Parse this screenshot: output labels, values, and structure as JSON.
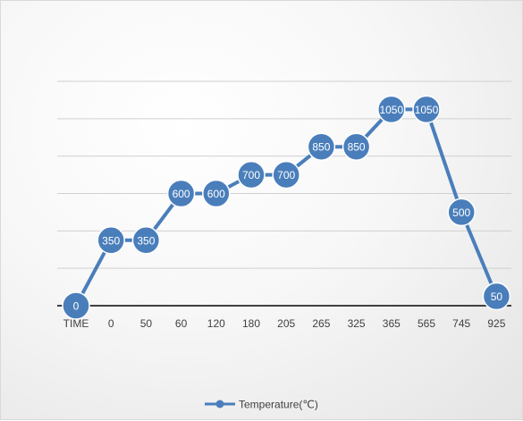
{
  "chart_data": {
    "type": "line",
    "title": "",
    "xlabel": "",
    "ylabel": "",
    "categories": [
      "TIME",
      "0",
      "50",
      "60",
      "120",
      "180",
      "205",
      "265",
      "325",
      "365",
      "565",
      "745",
      "925"
    ],
    "series": [
      {
        "name": "Temperature(℃)",
        "values": [
          0,
          350,
          350,
          600,
          600,
          700,
          700,
          850,
          850,
          1050,
          1050,
          500,
          50
        ],
        "color": "#4a7ebb"
      }
    ],
    "ylim": [
      0,
      1200
    ],
    "y_gridlines": [
      0,
      200,
      400,
      600,
      800,
      1000,
      1200
    ],
    "y_tick_labels_shown": false,
    "grid": true,
    "legend": "bottom",
    "data_labels": true
  }
}
